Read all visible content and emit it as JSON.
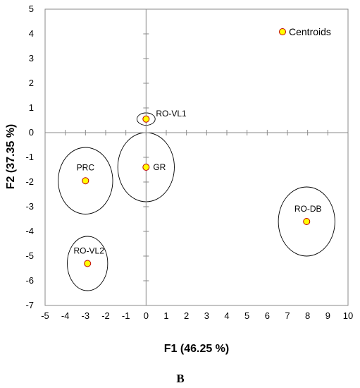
{
  "chart_data": {
    "type": "scatter",
    "xlabel": "F1 (46.25 %)",
    "ylabel": "F2 (37.35 %)",
    "xlim": [
      -5,
      10
    ],
    "ylim": [
      -7,
      5
    ],
    "x_ticks": [
      "-5",
      "-4",
      "-3",
      "-2",
      "-1",
      "0",
      "1",
      "2",
      "3",
      "4",
      "5",
      "6",
      "7",
      "8",
      "9",
      "10"
    ],
    "y_ticks": [
      "5",
      "4",
      "3",
      "2",
      "1",
      "0",
      "-1",
      "-2",
      "-3",
      "-4",
      "-5",
      "-6",
      "-7"
    ],
    "series": [
      {
        "name": "Centroids",
        "color": "#FFFF00",
        "points": [
          {
            "label": "RO-VL1",
            "x": 0.0,
            "y": 0.55,
            "rx": 0.45,
            "ry": 0.25
          },
          {
            "label": "GR",
            "x": 0.0,
            "y": -1.4,
            "rx": 1.4,
            "ry": 1.4
          },
          {
            "label": "PRC",
            "x": -3.0,
            "y": -1.95,
            "rx": 1.35,
            "ry": 1.35
          },
          {
            "label": "RO-VL2",
            "x": -2.9,
            "y": -5.3,
            "rx": 1.0,
            "ry": 1.1
          },
          {
            "label": "RO-DB",
            "x": 7.95,
            "y": -3.6,
            "rx": 1.4,
            "ry": 1.4
          }
        ]
      }
    ],
    "legend": {
      "position": "top-right",
      "label": "Centroids"
    },
    "grid": false
  },
  "panel_label": "B"
}
